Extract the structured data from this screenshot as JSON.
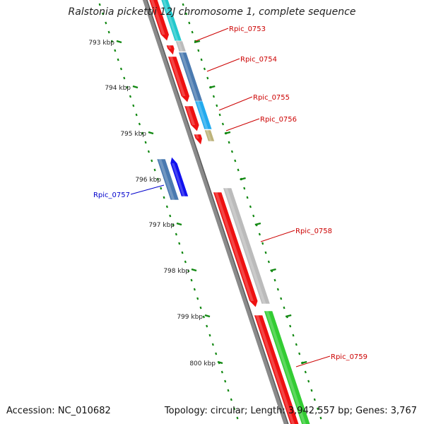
{
  "title": "Ralstonia pickettii 12J chromosome 1, complete sequence",
  "footer": {
    "accession": "Accession: NC_010682",
    "summary": "Topology: circular; Length: 3,942,557 bp; Genes: 3,767"
  },
  "scale_labels": [
    "793 kbp",
    "794 kbp",
    "795 kbp",
    "796 kbp",
    "797 kbp",
    "798 kbp",
    "799 kbp",
    "800 kbp"
  ],
  "gene_labels": [
    {
      "text": "Rpic_0753",
      "color": "#cc0000"
    },
    {
      "text": "Rpic_0754",
      "color": "#cc0000"
    },
    {
      "text": "Rpic_0755",
      "color": "#cc0000"
    },
    {
      "text": "Rpic_0756",
      "color": "#cc0000"
    },
    {
      "text": "Rpic_0757",
      "color": "#0000cc"
    },
    {
      "text": "Rpic_0758",
      "color": "#cc0000"
    },
    {
      "text": "Rpic_0759",
      "color": "#cc0000"
    }
  ],
  "colors": {
    "backbone": "#8a8a8a",
    "cds_forward": "#ee1111",
    "cds_reverse": "#1111ee",
    "scale_ticks": "#118811",
    "cog_cyan": "#22c8cc",
    "cog_steelblue": "#4a7ab0",
    "cog_lightblue": "#22aaee",
    "cog_khaki": "#bdb37a",
    "cog_grey": "#bbbbbb",
    "cog_green": "#33cc33"
  }
}
